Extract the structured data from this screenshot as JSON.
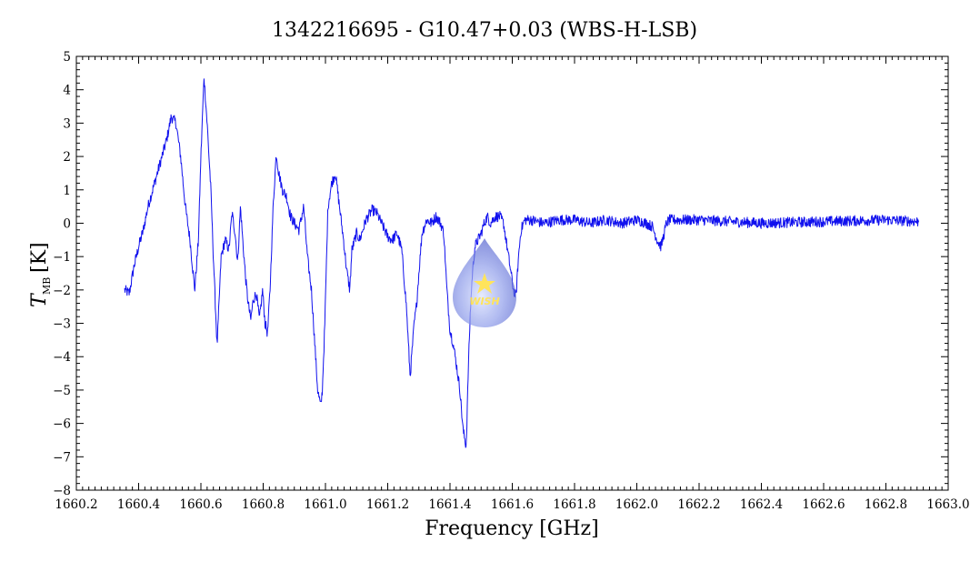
{
  "chart_data": {
    "type": "line",
    "title": "1342216695 - G10.47+0.03 (WBS-H-LSB)",
    "xlabel": "Frequency [GHz]",
    "ylabel_main": "T",
    "ylabel_sub": "MB",
    "ylabel_unit": "[K]",
    "xlim": [
      1660.2,
      1663.0
    ],
    "ylim": [
      -8,
      5
    ],
    "xticks": [
      1660.2,
      1660.4,
      1660.6,
      1660.8,
      1661.0,
      1661.2,
      1661.4,
      1661.6,
      1661.8,
      1662.0,
      1662.2,
      1662.4,
      1662.6,
      1662.8,
      1663.0
    ],
    "xtick_labels": [
      "1660.2",
      "1660.4",
      "1660.6",
      "1660.8",
      "1661.0",
      "1661.2",
      "1661.4",
      "1661.6",
      "1661.8",
      "1662.0",
      "1662.2",
      "1662.4",
      "1662.6",
      "1662.8",
      "1663.0"
    ],
    "yticks": [
      -8,
      -7,
      -6,
      -5,
      -4,
      -3,
      -2,
      -1,
      0,
      1,
      2,
      3,
      4,
      5
    ],
    "ytick_labels": [
      "−8",
      "−7",
      "−6",
      "−5",
      "−4",
      "−3",
      "−2",
      "−1",
      "0",
      "1",
      "2",
      "3",
      "4",
      "5"
    ],
    "grid": false,
    "series_color": "#1010ee",
    "x_range": [
      1660.355,
      1662.905
    ],
    "noise_amplitude": 0.16,
    "series": [
      {
        "x": [
          1660.355,
          1660.37,
          1660.385,
          1660.4,
          1660.415,
          1660.43,
          1660.445,
          1660.46,
          1660.475,
          1660.49,
          1660.505,
          1660.52,
          1660.535,
          1660.55,
          1660.565,
          1660.58,
          1660.592,
          1660.6,
          1660.61,
          1660.62,
          1660.632,
          1660.64,
          1660.652,
          1660.665,
          1660.678,
          1660.69,
          1660.7,
          1660.71,
          1660.718,
          1660.727,
          1660.735,
          1660.745,
          1660.752,
          1660.76,
          1660.768,
          1660.778,
          1660.788,
          1660.798,
          1660.806,
          1660.814,
          1660.822,
          1660.832,
          1660.842,
          1660.85,
          1660.862,
          1660.875,
          1660.888,
          1660.9,
          1660.915,
          1660.93,
          1660.942,
          1660.955,
          1660.965,
          1660.975,
          1660.985,
          1660.99,
          1660.998,
          1661.008,
          1661.02,
          1661.032,
          1661.045,
          1661.058,
          1661.068,
          1661.078,
          1661.085,
          1661.1,
          1661.11,
          1661.13,
          1661.15,
          1661.165,
          1661.18,
          1661.2,
          1661.215,
          1661.23,
          1661.245,
          1661.26,
          1661.272,
          1661.285,
          1661.292,
          1661.3,
          1661.31,
          1661.325,
          1661.34,
          1661.355,
          1661.37,
          1661.38,
          1661.39,
          1661.4,
          1661.41,
          1661.42,
          1661.432,
          1661.442,
          1661.452,
          1661.46,
          1661.466,
          1661.472,
          1661.48,
          1661.49,
          1661.5,
          1661.51,
          1661.52,
          1661.53,
          1661.545,
          1661.56,
          1661.572,
          1661.58,
          1661.588,
          1661.596,
          1661.604,
          1661.612,
          1661.62,
          1661.628,
          1661.64,
          1661.66,
          1661.7,
          1661.75,
          1661.8,
          1661.85,
          1661.9,
          1661.95,
          1662.0,
          1662.03,
          1662.05,
          1662.065,
          1662.078,
          1662.088,
          1662.095,
          1662.105,
          1662.12,
          1662.2,
          1662.4,
          1662.6,
          1662.8,
          1662.905
        ],
        "y": [
          -2.0,
          -2.1,
          -1.3,
          -0.7,
          -0.2,
          0.5,
          1.0,
          1.5,
          2.0,
          2.5,
          3.2,
          3.0,
          2.0,
          0.5,
          -0.5,
          -2.0,
          -0.5,
          2.0,
          4.4,
          3.0,
          1.0,
          -1.0,
          -3.7,
          -1.0,
          -0.5,
          -0.8,
          0.3,
          -0.3,
          -1.2,
          0.5,
          -0.6,
          -1.8,
          -2.4,
          -2.9,
          -2.3,
          -2.1,
          -2.9,
          -2.0,
          -3.0,
          -3.3,
          -2.0,
          0.5,
          2.1,
          1.5,
          1.0,
          0.8,
          0.2,
          0.0,
          -0.2,
          0.5,
          -1.0,
          -2.0,
          -3.5,
          -5.0,
          -5.5,
          -5.0,
          -3.0,
          0.5,
          1.2,
          1.5,
          0.5,
          -0.5,
          -1.4,
          -2.0,
          -0.8,
          -0.3,
          -0.5,
          0.1,
          0.4,
          0.3,
          0.0,
          -0.4,
          -0.5,
          -0.3,
          -0.8,
          -2.5,
          -4.6,
          -3.0,
          -2.5,
          -1.5,
          -0.3,
          0.1,
          0.0,
          0.2,
          0.0,
          -0.3,
          -2.0,
          -3.2,
          -3.6,
          -4.2,
          -5.0,
          -6.2,
          -6.7,
          -4.0,
          -2.5,
          -1.5,
          -0.7,
          -0.5,
          -0.3,
          0.0,
          0.2,
          0.0,
          0.2,
          0.2,
          0.0,
          -0.5,
          -1.0,
          -1.5,
          -2.0,
          -2.2,
          -1.0,
          -0.2,
          0.1,
          0.1,
          0.0,
          0.1,
          0.1,
          0.0,
          0.1,
          0.0,
          0.1,
          0.0,
          -0.1,
          -0.5,
          -0.7,
          -0.3,
          0.0,
          0.1,
          0.1,
          0.1,
          0.0,
          0.05,
          0.1,
          0.05
        ]
      }
    ]
  },
  "logo": {
    "text": "WISH",
    "colors": [
      "#9fb0f0",
      "#5a6ad6",
      "#ffe24a"
    ]
  }
}
